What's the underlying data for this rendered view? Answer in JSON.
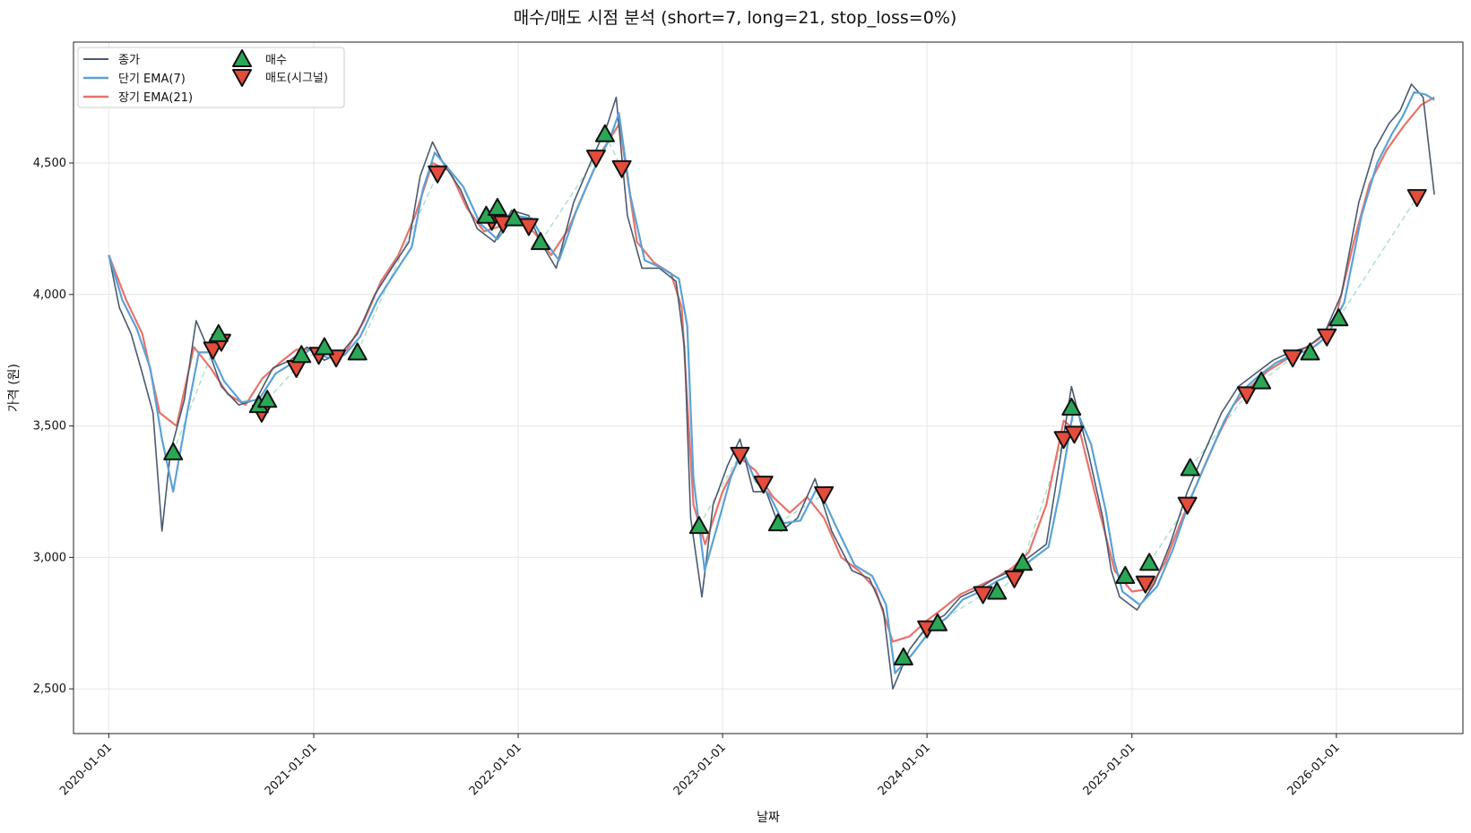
{
  "chart_data": {
    "type": "line",
    "title": "매수/매도 시점 분석 (short=7, long=21, stop_loss=0%)",
    "xlabel": "날짜",
    "ylabel": "가격 (원)",
    "xlim": [
      "2019-10-30",
      "2026-08-15"
    ],
    "ylim": [
      2330,
      4960
    ],
    "grid": true,
    "legend_position": "top-left",
    "x_ticks": [
      "2020-01-01",
      "2021-01-01",
      "2022-01-01",
      "2023-01-01",
      "2024-01-01",
      "2025-01-01",
      "2026-01-01"
    ],
    "y_ticks": [
      2500,
      3000,
      3500,
      4000,
      4500
    ],
    "y_tick_labels": [
      "2,500",
      "3,000",
      "3,500",
      "4,000",
      "4,500"
    ],
    "colors": {
      "close": "#4a5a70",
      "ema_short": "#5aa2d6",
      "ema_long": "#e8736a",
      "buy": "#2aa756",
      "sell": "#e44c3c",
      "trade_link": "#a6dfcc"
    },
    "series": [
      {
        "name": "종가",
        "x": [
          "2020-01-01",
          "2020-01-20",
          "2020-02-10",
          "2020-03-01",
          "2020-03-20",
          "2020-04-05",
          "2020-04-20",
          "2020-05-15",
          "2020-06-05",
          "2020-06-25",
          "2020-07-20",
          "2020-08-20",
          "2020-09-20",
          "2020-10-20",
          "2020-11-20",
          "2020-12-20",
          "2021-01-20",
          "2021-02-20",
          "2021-03-20",
          "2021-04-20",
          "2021-05-20",
          "2021-06-20",
          "2021-07-10",
          "2021-08-01",
          "2021-08-20",
          "2021-09-20",
          "2021-10-20",
          "2021-11-20",
          "2021-12-20",
          "2022-01-20",
          "2022-02-10",
          "2022-03-10",
          "2022-04-10",
          "2022-05-10",
          "2022-06-10",
          "2022-06-25",
          "2022-07-15",
          "2022-08-10",
          "2022-09-10",
          "2022-10-10",
          "2022-10-25",
          "2022-11-05",
          "2022-11-25",
          "2022-12-15",
          "2023-01-10",
          "2023-02-01",
          "2023-02-25",
          "2023-03-20",
          "2023-04-15",
          "2023-05-15",
          "2023-06-15",
          "2023-07-15",
          "2023-08-20",
          "2023-09-20",
          "2023-10-15",
          "2023-11-01",
          "2023-12-01",
          "2024-01-05",
          "2024-02-01",
          "2024-03-01",
          "2024-04-01",
          "2024-05-01",
          "2024-06-01",
          "2024-07-01",
          "2024-08-01",
          "2024-08-20",
          "2024-09-15",
          "2024-10-15",
          "2024-11-10",
          "2024-11-25",
          "2024-12-10",
          "2025-01-10",
          "2025-02-10",
          "2025-03-10",
          "2025-04-10",
          "2025-05-10",
          "2025-06-10",
          "2025-07-10",
          "2025-08-10",
          "2025-09-10",
          "2025-10-10",
          "2025-11-10",
          "2025-12-10",
          "2026-01-10",
          "2026-02-10",
          "2026-03-10",
          "2026-04-05",
          "2026-04-25",
          "2026-05-15",
          "2026-06-05",
          "2026-06-25"
        ],
        "values": [
          4150,
          3950,
          3850,
          3700,
          3550,
          3100,
          3400,
          3600,
          3900,
          3800,
          3650,
          3580,
          3600,
          3720,
          3750,
          3800,
          3750,
          3780,
          3850,
          4000,
          4100,
          4200,
          4450,
          4580,
          4500,
          4400,
          4250,
          4200,
          4320,
          4300,
          4200,
          4100,
          4350,
          4500,
          4650,
          4750,
          4300,
          4100,
          4100,
          4050,
          3800,
          3150,
          2850,
          3200,
          3350,
          3450,
          3250,
          3250,
          3100,
          3150,
          3300,
          3100,
          2950,
          2920,
          2800,
          2500,
          2650,
          2750,
          2780,
          2850,
          2880,
          2920,
          2950,
          3000,
          3050,
          3300,
          3650,
          3400,
          3150,
          2950,
          2850,
          2800,
          2900,
          3050,
          3250,
          3400,
          3550,
          3650,
          3700,
          3750,
          3780,
          3800,
          3850,
          4000,
          4350,
          4550,
          4650,
          4700,
          4800,
          4750,
          4380
        ]
      },
      {
        "name": "단기 EMA(7)",
        "x": [
          "2020-01-01",
          "2020-01-25",
          "2020-02-20",
          "2020-03-15",
          "2020-04-05",
          "2020-04-25",
          "2020-05-20",
          "2020-06-10",
          "2020-07-01",
          "2020-07-25",
          "2020-08-25",
          "2020-09-25",
          "2020-10-25",
          "2020-11-25",
          "2020-12-25",
          "2021-01-25",
          "2021-02-25",
          "2021-03-25",
          "2021-04-25",
          "2021-05-25",
          "2021-06-25",
          "2021-07-15",
          "2021-08-05",
          "2021-08-25",
          "2021-09-25",
          "2021-10-25",
          "2021-11-25",
          "2021-12-25",
          "2022-01-25",
          "2022-02-15",
          "2022-03-15",
          "2022-04-15",
          "2022-05-15",
          "2022-06-15",
          "2022-06-30",
          "2022-07-20",
          "2022-08-15",
          "2022-09-15",
          "2022-10-15",
          "2022-10-30",
          "2022-11-10",
          "2022-11-30",
          "2022-12-20",
          "2023-01-15",
          "2023-02-05",
          "2023-03-01",
          "2023-03-25",
          "2023-04-20",
          "2023-05-20",
          "2023-06-20",
          "2023-07-20",
          "2023-08-25",
          "2023-09-25",
          "2023-10-20",
          "2023-11-05",
          "2023-12-05",
          "2024-01-10",
          "2024-02-05",
          "2024-03-05",
          "2024-04-05",
          "2024-05-05",
          "2024-06-05",
          "2024-07-05",
          "2024-08-05",
          "2024-08-25",
          "2024-09-20",
          "2024-10-20",
          "2024-11-15",
          "2024-11-30",
          "2024-12-15",
          "2025-01-15",
          "2025-02-15",
          "2025-03-15",
          "2025-04-15",
          "2025-05-15",
          "2025-06-15",
          "2025-07-15",
          "2025-08-15",
          "2025-09-15",
          "2025-10-15",
          "2025-11-15",
          "2025-12-15",
          "2026-01-15",
          "2026-02-15",
          "2026-03-15",
          "2026-04-10",
          "2026-04-30",
          "2026-05-20",
          "2026-06-10",
          "2026-06-25"
        ],
        "values": [
          4150,
          3980,
          3870,
          3720,
          3450,
          3250,
          3550,
          3780,
          3780,
          3670,
          3590,
          3600,
          3700,
          3740,
          3790,
          3760,
          3770,
          3840,
          3980,
          4080,
          4180,
          4400,
          4540,
          4490,
          4410,
          4270,
          4210,
          4300,
          4290,
          4210,
          4130,
          4320,
          4470,
          4600,
          4690,
          4380,
          4130,
          4100,
          4060,
          3880,
          3300,
          2950,
          3100,
          3300,
          3410,
          3290,
          3240,
          3130,
          3140,
          3270,
          3130,
          2970,
          2930,
          2820,
          2560,
          2630,
          2730,
          2770,
          2840,
          2870,
          2910,
          2940,
          2990,
          3040,
          3250,
          3580,
          3430,
          3180,
          2990,
          2870,
          2820,
          2890,
          3030,
          3220,
          3370,
          3520,
          3630,
          3690,
          3740,
          3770,
          3790,
          3840,
          3970,
          4300,
          4500,
          4610,
          4680,
          4770,
          4760,
          4740
        ]
      },
      {
        "name": "장기 EMA(21)",
        "x": [
          "2020-01-01",
          "2020-02-01",
          "2020-03-01",
          "2020-04-01",
          "2020-05-01",
          "2020-06-01",
          "2020-07-01",
          "2020-08-01",
          "2020-09-01",
          "2020-10-01",
          "2020-11-01",
          "2020-12-01",
          "2021-01-01",
          "2021-02-01",
          "2021-03-01",
          "2021-04-01",
          "2021-05-01",
          "2021-06-01",
          "2021-07-01",
          "2021-08-01",
          "2021-09-01",
          "2021-10-01",
          "2021-11-01",
          "2021-12-01",
          "2022-01-01",
          "2022-02-01",
          "2022-03-01",
          "2022-04-01",
          "2022-05-01",
          "2022-06-01",
          "2022-07-01",
          "2022-08-01",
          "2022-09-01",
          "2022-10-01",
          "2022-10-20",
          "2022-11-10",
          "2022-12-01",
          "2023-01-01",
          "2023-02-01",
          "2023-03-01",
          "2023-04-01",
          "2023-05-01",
          "2023-06-01",
          "2023-07-01",
          "2023-08-01",
          "2023-09-01",
          "2023-10-01",
          "2023-11-01",
          "2023-12-01",
          "2024-01-01",
          "2024-02-01",
          "2024-03-01",
          "2024-04-01",
          "2024-05-01",
          "2024-06-01",
          "2024-07-01",
          "2024-08-01",
          "2024-09-01",
          "2024-10-01",
          "2024-11-01",
          "2024-12-01",
          "2025-01-01",
          "2025-02-01",
          "2025-03-01",
          "2025-04-01",
          "2025-05-01",
          "2025-06-01",
          "2025-07-01",
          "2025-08-01",
          "2025-09-01",
          "2025-10-01",
          "2025-11-01",
          "2025-12-01",
          "2026-01-01",
          "2026-02-01",
          "2026-03-01",
          "2026-04-01",
          "2026-05-01",
          "2026-06-01",
          "2026-06-25"
        ],
        "values": [
          4150,
          3980,
          3850,
          3550,
          3500,
          3800,
          3720,
          3620,
          3580,
          3680,
          3740,
          3790,
          3790,
          3770,
          3790,
          3900,
          4050,
          4150,
          4300,
          4500,
          4470,
          4330,
          4240,
          4260,
          4300,
          4230,
          4150,
          4250,
          4400,
          4550,
          4650,
          4200,
          4120,
          4080,
          3950,
          3200,
          3050,
          3250,
          3380,
          3330,
          3230,
          3170,
          3230,
          3150,
          3000,
          2950,
          2880,
          2680,
          2700,
          2760,
          2810,
          2860,
          2890,
          2920,
          2960,
          3020,
          3200,
          3520,
          3470,
          3200,
          2950,
          2870,
          2880,
          2980,
          3150,
          3300,
          3450,
          3580,
          3650,
          3710,
          3750,
          3790,
          3830,
          3920,
          4200,
          4420,
          4550,
          4640,
          4720,
          4750
        ]
      }
    ],
    "buy_signals": {
      "name": "매수",
      "x": [
        "2020-04-25",
        "2020-07-15",
        "2020-09-25",
        "2020-10-10",
        "2020-12-10",
        "2021-01-20",
        "2021-03-20",
        "2021-11-05",
        "2021-11-25",
        "2021-12-25",
        "2022-02-10",
        "2022-06-05",
        "2022-11-20",
        "2023-04-10",
        "2023-11-20",
        "2024-01-20",
        "2024-05-05",
        "2024-06-20",
        "2024-09-15",
        "2024-12-20",
        "2025-02-01",
        "2025-04-15",
        "2025-08-20",
        "2025-11-15",
        "2026-01-05"
      ],
      "values": [
        3400,
        3850,
        3580,
        3600,
        3770,
        3800,
        3780,
        4300,
        4330,
        4290,
        4200,
        4610,
        3120,
        3130,
        2620,
        2750,
        2870,
        2980,
        3570,
        2930,
        2980,
        3340,
        3670,
        3780,
        3910
      ]
    },
    "sell_signals": {
      "name": "매도(시그널)",
      "x": [
        "2020-07-05",
        "2020-07-20",
        "2020-09-30",
        "2020-12-01",
        "2021-01-10",
        "2021-02-10",
        "2021-08-10",
        "2021-11-15",
        "2021-12-05",
        "2022-01-20",
        "2022-05-20",
        "2022-07-05",
        "2023-02-01",
        "2023-03-15",
        "2023-07-01",
        "2024-01-01",
        "2024-04-10",
        "2024-06-05",
        "2024-09-01",
        "2024-09-20",
        "2025-01-25",
        "2025-04-10",
        "2025-07-25",
        "2025-10-15",
        "2025-12-15",
        "2026-05-25"
      ],
      "values": [
        3790,
        3820,
        3550,
        3720,
        3770,
        3760,
        4460,
        4280,
        4270,
        4260,
        4520,
        4480,
        3390,
        3280,
        3240,
        2730,
        2860,
        2920,
        3450,
        3470,
        2900,
        3200,
        3620,
        3760,
        3840,
        4370
      ]
    }
  }
}
